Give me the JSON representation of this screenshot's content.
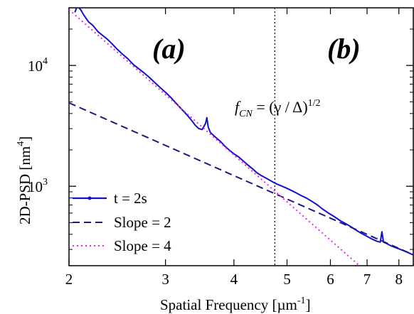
{
  "chart_data": {
    "type": "line",
    "x_scale": "log",
    "y_scale": "log",
    "xlim": [
      2,
      8.5
    ],
    "ylim": [
      220,
      30000
    ],
    "xlabel": "Spatial Frequency [µm",
    "xlabel_sup": "-1",
    "xlabel_end": "]",
    "ylabel": "2D-PSD [nm",
    "ylabel_sup": "4",
    "ylabel_end": "]",
    "x_ticks": [
      2,
      3,
      4,
      5,
      6,
      7,
      8
    ],
    "x_tick_labels": [
      "2",
      "3",
      "4",
      "5",
      "6",
      "7",
      "8"
    ],
    "y_ticks": [
      {
        "value": 1000,
        "base": "10",
        "exp": "3"
      },
      {
        "value": 10000,
        "base": "10",
        "exp": "4"
      }
    ],
    "panel_labels": [
      "(a)",
      "(b)"
    ],
    "vline": {
      "x": 4.75,
      "color": "#000000"
    },
    "annotation": {
      "main": "f",
      "sub": "CN",
      "rest": " = (γ / Δ)",
      "sup": "1/2"
    },
    "legend": {
      "placement": "bottom-left",
      "entries": [
        {
          "label": "t = 2s",
          "style": "solid-dot",
          "color": "#1111cc"
        },
        {
          "label": "Slope = 2",
          "style": "dashed",
          "color": "#1a1a80"
        },
        {
          "label": "Slope = 4",
          "style": "dotted",
          "color": "#ee22ee"
        }
      ]
    },
    "series": [
      {
        "name": "t = 2s",
        "color": "#1111cc",
        "x": [
          2.05,
          2.07,
          2.1,
          2.13,
          2.17,
          2.21,
          2.26,
          2.3,
          2.35,
          2.4,
          2.45,
          2.5,
          2.56,
          2.62,
          2.68,
          2.74,
          2.8,
          2.87,
          2.93,
          3.0,
          3.06,
          3.12,
          3.18,
          3.25,
          3.3,
          3.35,
          3.4,
          3.45,
          3.5,
          3.55,
          3.57,
          3.59,
          3.62,
          3.65,
          3.7,
          3.78,
          3.85,
          3.92,
          4.0,
          4.08,
          4.16,
          4.24,
          4.32,
          4.4,
          4.48,
          4.56,
          4.64,
          4.72,
          4.8,
          4.9,
          5.0,
          5.1,
          5.2,
          5.3,
          5.42,
          5.55,
          5.68,
          5.8,
          5.95,
          6.1,
          6.25,
          6.4,
          6.55,
          6.7,
          6.85,
          7.0,
          7.15,
          7.3,
          7.4,
          7.45,
          7.5,
          7.6,
          7.75,
          7.9,
          8.05,
          8.2,
          8.35,
          8.5
        ],
        "values": [
          27500,
          31000,
          29000,
          26000,
          23000,
          21500,
          19000,
          17800,
          16500,
          15000,
          13600,
          12500,
          11400,
          10200,
          9400,
          8700,
          8000,
          7200,
          6600,
          6000,
          5500,
          5000,
          4550,
          4100,
          3800,
          3500,
          3200,
          3000,
          2950,
          3300,
          3700,
          3100,
          2800,
          2700,
          2550,
          2350,
          2150,
          2000,
          1850,
          1750,
          1620,
          1500,
          1400,
          1300,
          1230,
          1180,
          1130,
          1080,
          1040,
          1000,
          960,
          920,
          880,
          840,
          800,
          750,
          700,
          650,
          600,
          560,
          520,
          490,
          460,
          430,
          405,
          385,
          365,
          350,
          345,
          420,
          345,
          335,
          320,
          310,
          300,
          290,
          280,
          270
        ]
      },
      {
        "name": "Slope = 2",
        "color": "#1a1a80",
        "x": [
          2,
          8.5
        ],
        "values": [
          4900,
          271
        ]
      },
      {
        "name": "Slope = 4",
        "color": "#ee22ee",
        "x": [
          2,
          6.8
        ],
        "values": [
          29000,
          217
        ]
      }
    ]
  }
}
